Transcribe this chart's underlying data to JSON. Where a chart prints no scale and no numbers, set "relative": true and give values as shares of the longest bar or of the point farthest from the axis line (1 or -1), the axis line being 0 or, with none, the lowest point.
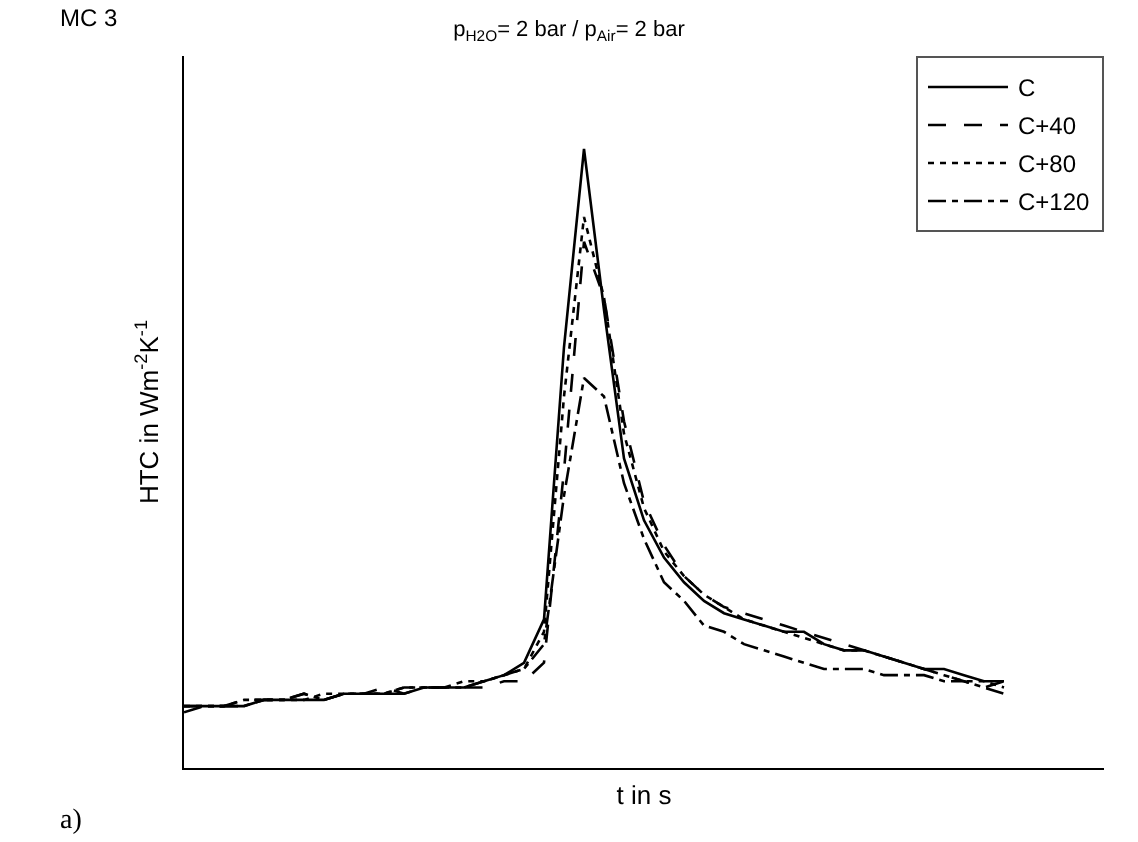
{
  "chart_data": {
    "type": "line",
    "relative": true,
    "title": "p$_{H2O}$= 2 bar / p$_{Air}$= 2 bar",
    "xlabel": "t in s",
    "ylabel": "HTC in Wm$^{-2}$K$^{-1}$",
    "annotations": [
      "MC 3",
      "a)"
    ],
    "legend": "top right",
    "marker": "none",
    "categories": [
      null,
      null,
      null,
      null,
      null,
      null,
      null,
      null,
      null,
      null,
      null,
      null,
      null,
      null,
      null,
      null,
      null,
      null,
      null,
      null,
      null,
      null,
      null,
      null,
      null,
      null,
      null,
      null,
      null,
      null,
      null,
      null,
      null,
      null,
      null,
      null,
      null,
      null,
      null,
      null,
      null,
      null,
      null,
      null,
      null,
      null,
      null
    ],
    "series": [
      {
        "name": "C",
        "color": "#000000",
        "line_style": "solid",
        "values": [
          0.1,
          0.1,
          0.1,
          0.1,
          0.11,
          0.11,
          0.11,
          0.11,
          0.12,
          0.12,
          0.12,
          0.12,
          0.13,
          0.13,
          0.13,
          0.14,
          0.15,
          0.17,
          0.24,
          0.68,
          1.0,
          0.74,
          0.5,
          0.4,
          0.34,
          0.3,
          0.27,
          0.25,
          0.24,
          0.23,
          0.22,
          0.22,
          0.2,
          0.19,
          0.19,
          0.18,
          0.17,
          0.16,
          0.16,
          0.15,
          0.14,
          0.14,
          null,
          null,
          null,
          null,
          null
        ]
      },
      {
        "name": "C+40",
        "color": "#000000",
        "line_style": "dashed",
        "values": [
          0.09,
          0.1,
          0.1,
          0.11,
          0.11,
          0.11,
          0.12,
          0.11,
          0.12,
          0.12,
          0.13,
          0.12,
          0.13,
          0.13,
          0.13,
          0.13,
          0.14,
          0.14,
          0.17,
          0.48,
          0.85,
          0.76,
          0.56,
          0.43,
          0.36,
          0.31,
          0.28,
          0.26,
          0.25,
          0.24,
          0.23,
          0.22,
          0.21,
          0.2,
          0.19,
          0.18,
          0.17,
          0.16,
          0.15,
          0.14,
          0.13,
          0.12,
          null,
          null,
          null,
          null,
          null
        ]
      },
      {
        "name": "C+80",
        "color": "#000000",
        "line_style": "dotted",
        "values": [
          0.1,
          0.1,
          0.1,
          0.11,
          0.11,
          0.11,
          0.11,
          0.12,
          0.12,
          0.12,
          0.12,
          0.13,
          0.13,
          0.13,
          0.14,
          0.14,
          0.15,
          0.16,
          0.22,
          0.6,
          0.89,
          0.76,
          0.54,
          0.42,
          0.35,
          0.31,
          0.28,
          0.26,
          0.24,
          0.23,
          0.22,
          0.21,
          0.2,
          0.19,
          0.19,
          0.18,
          0.17,
          0.16,
          0.15,
          0.14,
          0.14,
          0.13,
          null,
          null,
          null,
          null,
          null
        ]
      },
      {
        "name": "C+120",
        "color": "#000000",
        "line_style": "dashdot",
        "values": [
          0.1,
          0.1,
          0.1,
          0.1,
          0.11,
          0.11,
          0.12,
          0.11,
          0.12,
          0.12,
          0.12,
          0.13,
          0.13,
          0.13,
          0.13,
          0.14,
          0.15,
          0.16,
          0.2,
          0.44,
          0.63,
          0.6,
          0.46,
          0.37,
          0.3,
          0.27,
          0.23,
          0.22,
          0.2,
          0.19,
          0.18,
          0.17,
          0.16,
          0.16,
          0.16,
          0.15,
          0.15,
          0.15,
          0.14,
          0.14,
          0.13,
          0.14,
          null,
          null,
          null,
          null,
          null
        ]
      }
    ]
  }
}
